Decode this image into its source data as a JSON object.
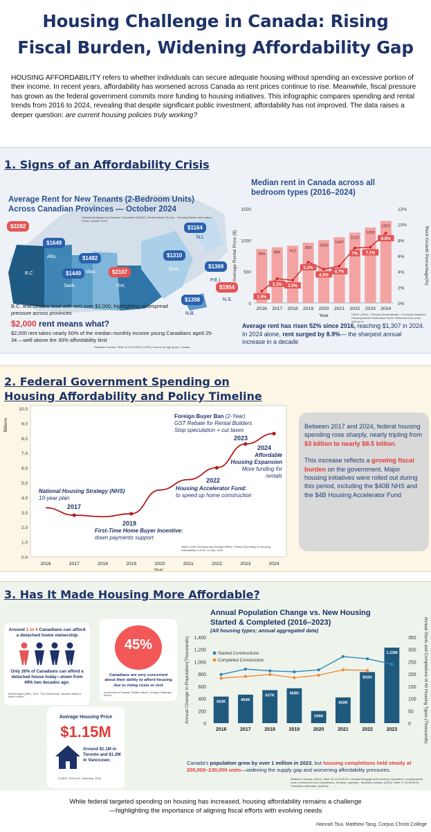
{
  "title_line1": "Housing Challenge in Canada: Rising",
  "title_line2": "Fiscal Burden, Widening Affordability Gap",
  "intro": {
    "lead": "HOUSING AFFORDABILITY",
    "text": "  refers to whether individuals can secure adequate housing without spending an excessive portion of their income. In recent years, affordability has worsened across Canada as rent prices continue to rise. Meanwhile, fiscal pressure has grown as the federal government commits more funding to housing initiatives. This infographic compares spending and rental trends from 2016 to 2024, revealing that despite significant public investment, affordability has not improved. The data raises a deeper question: ",
    "question": "are current housing policies truly working?"
  },
  "section1": {
    "heading": "1. Signs of an Affordability Crisis",
    "map_title": "Average Rent for New Tenants (2-Bedroom Units) Across Canadian Provinces — October 2024",
    "map_source": "Canada Mortgage and Housing Corporation (CMHC). Rental Market Survey – Housing Market Information Portal, October 2024",
    "map_note": "B.C. and Ontario lead with rent over $2,000, highlighting widespread pressure across provinces",
    "rent_head_red": "$2,000",
    "rent_head_rest": " rent means what?",
    "rent_text": "$2,000 rent takes nearly 50% of the median monthly income young Canadians aged 25-34 —well above the 30% affordability limit",
    "rent_source": "Statistics Canada, Table 11-10-0239-01 (2022), Income by age group, Canada.",
    "bubbles": [
      {
        "label": "$2282",
        "prov": "B.C",
        "red": true
      },
      {
        "label": "$1649",
        "prov": "Alta.",
        "red": false
      },
      {
        "label": "$1449",
        "prov": "Sask.",
        "red": false
      },
      {
        "label": "$1482",
        "prov": "Man.",
        "red": false
      },
      {
        "label": "$2107",
        "prov": "Ont.",
        "red": true
      },
      {
        "label": "$1310",
        "prov": "Que.",
        "red": false
      },
      {
        "label": "$1164",
        "prov": "N.L",
        "red": false
      },
      {
        "label": "$1369",
        "prov": "P.E.I.",
        "red": false
      },
      {
        "label": "$1954",
        "prov": "N.S.",
        "red": true
      },
      {
        "label": "$1398",
        "prov": "N.B.",
        "red": false
      }
    ],
    "rent_chart_source": "CMHC (2024). \"Primary Rental Market > Summary Statistics.\" Housing Market Information Portal. Retrieved from cmhc-schl.gc.ca",
    "rent_summary_a": "Average rent has risen 52% since 2016,",
    "rent_summary_b": " reaching $1,307 in 2024. In 2024 alone, ",
    "rent_summary_c": "rent surged by 8.9%",
    "rent_summary_d": "— the sharpest annual increase in a decade"
  },
  "section2": {
    "heading_line1": "2. Federal Government Spending on",
    "heading_line2": "Housing Affordability and Policy Timeline",
    "ann": {
      "fbb_title": "Foreign Buyer Ban",
      "fbb_sub": " (2-Year)",
      "fbb_2": "GST Rebate for Rental Builders",
      "fbb_3": "Stop speculation + cut taxes",
      "y2023": "2023",
      "y2024": "2024",
      "afford_1": "Affordable",
      "afford_2": "Housing Expansion",
      "afford_3": "More funding for",
      "afford_4": "rentals",
      "y2022": "2022",
      "haf_1": "Housing Accelerator Fund:",
      "haf_2": "to speed up home construction",
      "nhs_1": "National Housing Strategy (NHS)",
      "nhs_2": "10-year plan",
      "y2017": "2017",
      "y2019": "2019",
      "fthb_1": "First-Time Home Buyer Incentive:",
      "fthb_2": "down payments support"
    },
    "chart_source": "Office of the Parliamentary Budget Officer. Federal Spending on Housing Affordability in 2024. 11 Mar. 2024",
    "panel_p1a": "Between 2017 and 2024, federal housing spending rose sharply, nearly tripling from ",
    "panel_p1b": "$3 billion to nearly $8.5 billion",
    "panel_p1c": ".",
    "panel_p2a": "This increase reflects a ",
    "panel_p2b": "growing fiscal burden",
    "panel_p2c": " on the government. Major housing initiatives were rolled out during this period, including the $40B NHS and the $4B Housing Accelerator Fund"
  },
  "section3": {
    "heading": "3. Has It Made Housing More Affordable?",
    "card1_a": "Around ",
    "card1_b": "1 in 4",
    "card1_c": " Canadians can afford a detached home ownership",
    "card1_d": "Only 26% of Canadians can afford a detached house today—down from 49% two decades ago.",
    "card1_src": "Robert Hogue (RBC), 2024. \"The Great Divide: Canada's Ability to Afford Homes.\"",
    "pct": "45%",
    "pct_text": "Canadians are very concerned about their ability to afford housing due to rising costs or rent",
    "pct_src": "Government of Canada, Relative Values. Housing Challenges Report",
    "price_title": "Average Housing Price",
    "price": "$1.15M",
    "price_text": "Around $1.1M in Toronto and $1.2M in Vancouver.",
    "price_src": "(TVREG, 2024) (Fin. Ownership, 2024)",
    "pop_text_a": "Canada's ",
    "pop_text_b": "population grew by over 1 million in 2023",
    "pop_text_c": ", but ",
    "pop_text_d": "housing completions held steady at 200,000–230,000 units",
    "pop_text_e": "—widening the supply gap and worsening affordability pressures.",
    "pop_src": "Statistics Canada. (2024). Table 34-10-0135-01: Canada Mortgage and Housing Corporation, housing starts, under construction and completions, all areas, quarterly ; Statistics Canada. (2024). Table 17-10-0009-01: Population estimates, quarterly"
  },
  "footer_line1": "While federal targeted spending on housing has increased, housing affordability remains a challenge",
  "footer_line2": "—highlighting the importance of aligning fiscal efforts with evolving needs",
  "credit": "Hannah Tsui, Matthew Tang, Corpus Christi College",
  "colors": {
    "navy": "#1d3267",
    "bar_rent": "#f4a3a3",
    "line_rent": "#c81e1e",
    "label_red": "#e35656",
    "gov_line": "#b01c1c",
    "pop_bar": "#1f5a7e",
    "starts": "#2e86b8",
    "completions": "#f08a3b"
  },
  "chart_data": [
    {
      "type": "bar",
      "title": "Median rent in Canada across all bedroom types (2016–2024)",
      "xlabel": "Year",
      "ylabel": "Average Rental Price ($)",
      "ylabel2": "Rent Growth Percentage(%)",
      "categories": [
        "2016",
        "2017",
        "2018",
        "2019",
        "2020",
        "2021",
        "2022",
        "2023",
        "2024"
      ],
      "ylim": [
        0,
        1500
      ],
      "y2lim": [
        0,
        12
      ],
      "yticks": [
        0,
        500,
        1000,
        1500
      ],
      "y2ticks": [
        "0%",
        "2%",
        "4%",
        "6%",
        "8%",
        "10%",
        "12%"
      ],
      "series": [
        {
          "kind": "bar",
          "values": [
            859,
            886,
            912,
            959,
            1000,
            1047,
            1120,
            1200,
            1307
          ],
          "labels": [
            "859",
            "886",
            "912",
            "959",
            "1000",
            "1047",
            "1120",
            "1200",
            "1307"
          ]
        },
        {
          "kind": "line",
          "axis": "right",
          "values": [
            1.5,
            3.1,
            2.9,
            5.2,
            4.3,
            4.7,
            7.0,
            7.1,
            8.9
          ],
          "labels": [
            "1.5%",
            "3.1%",
            "2.9%",
            "5.2%",
            "4.3%",
            "4.7%",
            "7%",
            "7.1%",
            "8.9%"
          ]
        }
      ]
    },
    {
      "type": "line",
      "ylabel": "Billions",
      "xlabel": "Year",
      "categories": [
        "2016",
        "2017",
        "2018",
        "2019",
        "2020",
        "2021",
        "2022",
        "2023",
        "2024"
      ],
      "yticks": [
        "0.0",
        "1.0",
        "2.0",
        "3.0",
        "4.0",
        "5.0",
        "6.0",
        "7.0",
        "8.0",
        "9.0",
        "10.0"
      ],
      "ylim": [
        0,
        10
      ],
      "series": [
        {
          "values": [
            3.3,
            2.8,
            2.7,
            2.9,
            4.5,
            5.2,
            6.0,
            7.6,
            8.3
          ]
        }
      ]
    },
    {
      "type": "bar",
      "title": "Annual Population Change vs. New Housing Started & Completed (2016–2023)",
      "subtitle": "(All housing types; annual aggregated data)",
      "ylabel": "Annual Change in Population(Thousands)",
      "ylabel2": "Annual Starts and Completions of All Housing Types (Thousands)",
      "categories": [
        "2016",
        "2017",
        "2018",
        "2019",
        "2020",
        "2021",
        "2022",
        "2023"
      ],
      "ylim": [
        0,
        1400
      ],
      "y2lim": [
        0,
        350
      ],
      "yticks": [
        "0",
        "200",
        "400",
        "600",
        "800",
        "1,000",
        "1,200",
        "1,400"
      ],
      "y2ticks": [
        "0",
        "50",
        "100",
        "150",
        "200",
        "250",
        "300",
        "350"
      ],
      "series": [
        {
          "name": "",
          "kind": "bar",
          "values": [
            433,
            464,
            537,
            568,
            199,
            419,
            832,
            1230
          ],
          "labels": [
            "433K",
            "464K",
            "537K",
            "568K",
            "199K",
            "419K",
            "832K",
            "1.23M"
          ]
        },
        {
          "name": "Started Constructions",
          "kind": "line",
          "axis": "right",
          "values": [
            198,
            220,
            213,
            209,
            217,
            271,
            262,
            240
          ]
        },
        {
          "name": "Completed Construction",
          "kind": "line",
          "axis": "right",
          "values": [
            183,
            190,
            198,
            185,
            195,
            217,
            215,
            null
          ]
        }
      ]
    }
  ]
}
